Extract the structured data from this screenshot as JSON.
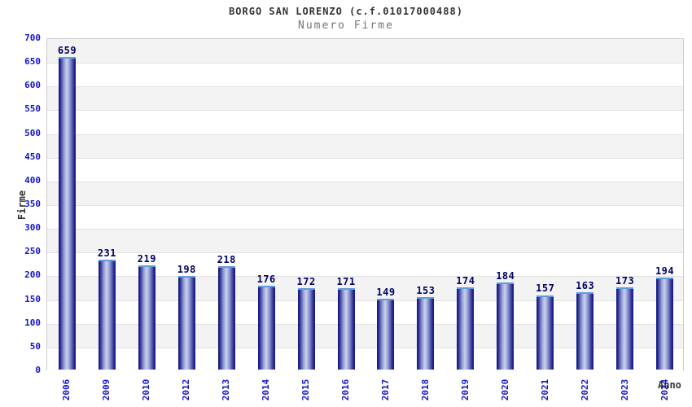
{
  "header": {
    "title": "BORGO SAN LORENZO (c.f.01017000488)",
    "subtitle": "Numero Firme"
  },
  "chart_data": {
    "type": "bar",
    "title": "BORGO SAN LORENZO (c.f.01017000488)",
    "subtitle": "Numero Firme",
    "xlabel": "Anno",
    "ylabel": "Firme",
    "categories": [
      "2006",
      "2009",
      "2010",
      "2012",
      "2013",
      "2014",
      "2015",
      "2016",
      "2017",
      "2018",
      "2019",
      "2020",
      "2021",
      "2022",
      "2023",
      "2024"
    ],
    "values": [
      659,
      231,
      219,
      198,
      218,
      176,
      172,
      171,
      149,
      153,
      174,
      184,
      157,
      163,
      173,
      194
    ],
    "ylim": [
      0,
      700
    ],
    "ytick_step": 50,
    "yticks": [
      0,
      50,
      100,
      150,
      200,
      250,
      300,
      350,
      400,
      450,
      500,
      550,
      600,
      650,
      700
    ],
    "legend": "none",
    "grid": "horizontal-bands-alternating",
    "colors": {
      "tick_label": "#1414cc",
      "category_label": "#1414cc",
      "value_label": "#000066",
      "title": "#333333",
      "subtitle": "#757575",
      "axis_title": "#333333",
      "plot_border": "#cccccc",
      "grid_line": "#e2e2e2",
      "band_gray": "#f3f3f3",
      "band_white": "#ffffff",
      "bar_edge": "#191984",
      "bar_dark": "#23238f",
      "bar_mid": "#8d97cf",
      "bar_light": "#ccd3ee",
      "bar_cap": "#5d9ddb"
    }
  }
}
